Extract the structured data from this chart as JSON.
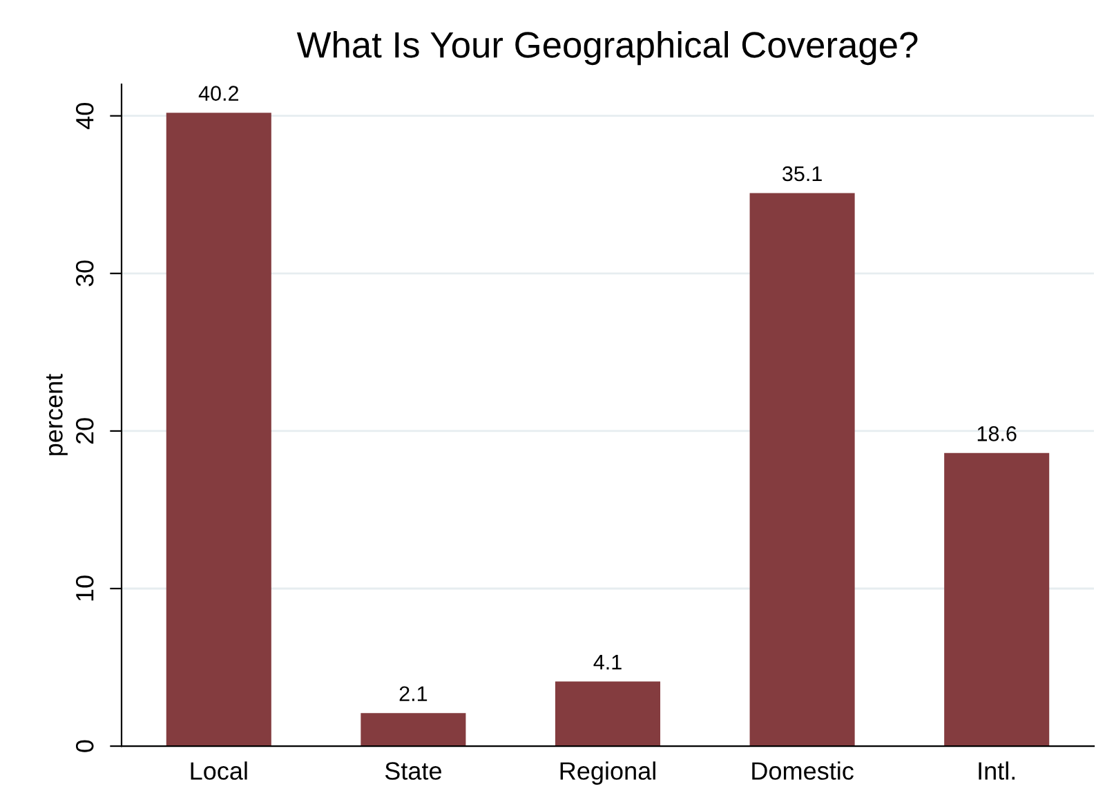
{
  "chart_data": {
    "type": "bar",
    "title": "What Is Your Geographical Coverage?",
    "ylabel": "percent",
    "categories": [
      "Local",
      "State",
      "Regional",
      "Domestic",
      "Intl."
    ],
    "values": [
      40.2,
      2.1,
      4.1,
      35.1,
      18.6
    ],
    "color": "#843c3f",
    "ylim": [
      0,
      42
    ],
    "yticks": [
      0,
      10,
      20,
      30,
      40
    ],
    "grid": "y",
    "data_labels": true
  }
}
